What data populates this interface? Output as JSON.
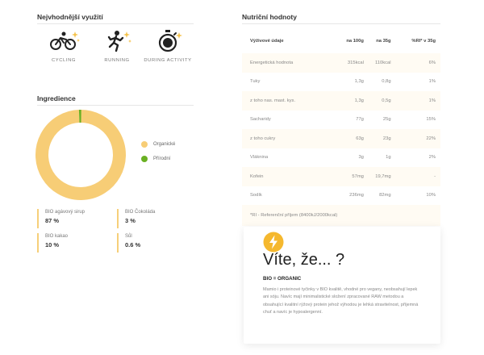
{
  "usage": {
    "title": "Nejvhodnější využití",
    "items": [
      {
        "label": "CYCLING",
        "icon": "cycling-icon"
      },
      {
        "label": "RUNNING",
        "icon": "running-icon"
      },
      {
        "label": "DURING ACTIVITY",
        "icon": "stopwatch-icon"
      }
    ]
  },
  "ingredients": {
    "title": "Ingredience",
    "chart_data": {
      "type": "pie",
      "categories": [
        "Organické",
        "Přírodní"
      ],
      "values": [
        99.4,
        0.6
      ],
      "colors": [
        "#f7cd76",
        "#6ab023"
      ]
    },
    "legend": [
      {
        "label": "Organické",
        "color": "#f7cd76"
      },
      {
        "label": "Přírodní",
        "color": "#6ab023"
      }
    ],
    "items": [
      {
        "name": "BIO agávový sirup",
        "value": "87 %"
      },
      {
        "name": "BIO Čokoláda",
        "value": "3 %"
      },
      {
        "name": "BIO kakao",
        "value": "10 %"
      },
      {
        "name": "Sůl",
        "value": "0.6 %"
      }
    ]
  },
  "nutrition": {
    "title": "Nutriční hodnoty",
    "headers": [
      "Výživové údaje",
      "na 100g",
      "na 35g",
      "%RI* v 35g"
    ],
    "rows": [
      [
        "Energetická hodnota",
        "315kcal",
        "110kcal",
        "6%"
      ],
      [
        "Tuky",
        "1,3g",
        "0,8g",
        "1%"
      ],
      [
        "z toho nas. mast. kys.",
        "1,3g",
        "0,5g",
        "1%"
      ],
      [
        "Sacharidy",
        "77g",
        "25g",
        "15%"
      ],
      [
        "z toho cukry",
        "63g",
        "23g",
        "22%"
      ],
      [
        "Vláknina",
        "3g",
        "1g",
        "2%"
      ],
      [
        "Kofein",
        "57mg",
        "19,7mg",
        "-"
      ],
      [
        "Sodík",
        "236mg",
        "82mg",
        "10%"
      ]
    ],
    "footnote": "*RI - Referenční příjem (8400kJ/2000kcal)"
  },
  "fact_card": {
    "icon": "lightning-icon",
    "accent": "#f5b82e",
    "title": "Víte, že... ?",
    "subtitle": "BIO = ORGANIC",
    "text": "Mamio i proteinové tyčinky v BIO kvalitě, vhodné pro vegany, neobsahují lepek ani sóju. Navíc mají minimalistické složení zpracované RAW metodou a obsahující kvalitní rýžový protein jehož výhodou je lehká stravitelnost, příjemná chuť a navíc je hypoalergenní."
  }
}
